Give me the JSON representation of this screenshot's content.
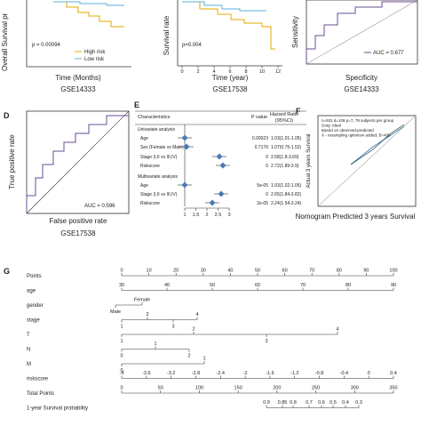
{
  "panel_a": {
    "y_label": "Overall Survival pr",
    "p_value": "p = 0.00094",
    "legend": [
      "High risk",
      "Low risk"
    ],
    "x_label": "Time (Months)",
    "dataset": "GSE14333"
  },
  "panel_b": {
    "y_label": "Survival rate",
    "p_value": "p=0.004",
    "x_label": "Time (year)",
    "x_ticks": [
      "0",
      "2",
      "4",
      "6",
      "8",
      "10",
      "12"
    ],
    "dataset": "GSE17538"
  },
  "panel_c": {
    "y_label": "Sensitivity",
    "auc": "AUC = 0.677",
    "x_label": "Specificity",
    "dataset": "GSE14333"
  },
  "panel_d": {
    "letter": "D",
    "y_label": "True positive rate",
    "x_label": "False positive rate",
    "auc": "AUC = 0.596",
    "dataset": "GSE17538"
  },
  "panel_e": {
    "letter": "E",
    "headers": [
      "Characteristics",
      "P value",
      "Hazard Ratio",
      "(95%CI)"
    ],
    "rows": [
      [
        "Univariate analysis",
        "",
        ""
      ],
      [
        "Age",
        "0.00023",
        "1.03(1.01-1.05)"
      ],
      [
        "Sex (Female vs Male)",
        "0.7176",
        "1.07(0.75-1.52)"
      ],
      [
        "Stage (I,II vs III,IV)",
        "0",
        "2.58(1.8-3.69)"
      ],
      [
        "Riskscore",
        "0",
        "2.72(1.89-3.9)"
      ],
      [
        "Multivariate analysis",
        "",
        ""
      ],
      [
        "Age",
        "5e-05",
        "1.03(1.02-1.05)"
      ],
      [
        "Stage (I,II vs III,IV)",
        "0",
        "2.65(1.84-3.82)"
      ],
      [
        "Riskscore",
        "2e-05",
        "2.24(1.54-3.24)"
      ]
    ],
    "axis_ticks": [
      "1",
      "1.5",
      "2",
      "2.5",
      "3"
    ]
  },
  "panel_f": {
    "letter": "F",
    "notes": [
      "n=531 d=108 p=7, 79 subjects per group",
      "Gray: ideal",
      "Based on observed-predicted",
      "X - resampling optimism added, B=400"
    ],
    "y_label": "Actual 3 years Survival",
    "x_label": "Nomogram Predicted 3 years Survival"
  },
  "panel_g": {
    "letter": "G",
    "rows": [
      {
        "label": "Points",
        "ticks": [
          "0",
          "10",
          "20",
          "30",
          "40",
          "50",
          "60",
          "70",
          "80",
          "90",
          "100"
        ]
      },
      {
        "label": "age",
        "ticks": [
          "30",
          "40",
          "50",
          "60",
          "70",
          "80",
          "90"
        ]
      },
      {
        "label": "gender",
        "ticks": [
          "Female",
          "Male"
        ]
      },
      {
        "label": "stage",
        "ticks": [
          "1",
          "2",
          "3",
          "4"
        ]
      },
      {
        "label": "T",
        "ticks": [
          "1",
          "2",
          "3",
          "4"
        ]
      },
      {
        "label": "N",
        "ticks": [
          "0",
          "1",
          "2"
        ]
      },
      {
        "label": "M",
        "ticks": [
          "0",
          "1"
        ]
      },
      {
        "label": "riskscore",
        "ticks": [
          "-4",
          "-3.6",
          "-3.2",
          "-2.8",
          "-2.4",
          "-2",
          "-1.6",
          "-1.2",
          "-0.8",
          "-0.4",
          "0",
          "0.4"
        ]
      },
      {
        "label": "Total Points",
        "ticks": [
          "0",
          "50",
          "100",
          "150",
          "200",
          "250",
          "300",
          "350"
        ]
      },
      {
        "label": "1-year Survival probability",
        "ticks": [
          "0.9",
          "0.85",
          "0.8",
          "0.7",
          "0.6",
          "0.5",
          "0.4",
          "0.3"
        ]
      }
    ]
  }
}
